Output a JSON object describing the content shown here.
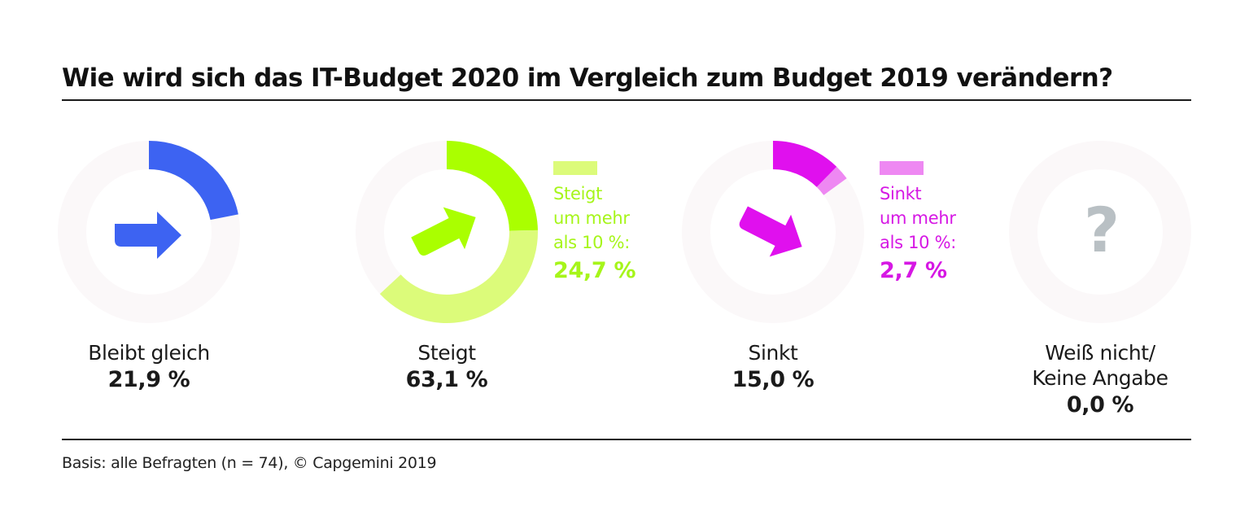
{
  "title": "Wie wird sich das IT-Budget 2020 im Vergleich zum Budget 2019 verändern?",
  "footer": "Basis: alle Befragten (n = 74), © Capgemini 2019",
  "colors": {
    "track": "#fbf8f9",
    "blue": "#3d63f2",
    "green_dark": "#aaff00",
    "green_light": "#dcfb7a",
    "magenta_dark": "#e010ee",
    "magenta_light": "#ee88f2",
    "grey": "#b9c0c4"
  },
  "chart_data": {
    "type": "pie",
    "variant": "donut-small-multiples",
    "title": "Wie wird sich das IT-Budget 2020 im Vergleich zum Budget 2019 verändern?",
    "unit": "%",
    "categories": [
      {
        "label": "Bleibt gleich",
        "value": 21.9,
        "value_label": "21,9 %",
        "icon": "arrow-right-icon",
        "segments": [
          {
            "name": "Bleibt gleich",
            "value": 21.9,
            "color": "#3d63f2"
          }
        ]
      },
      {
        "label": "Steigt",
        "value": 63.1,
        "value_label": "63,1 %",
        "icon": "arrow-up-right-icon",
        "segments": [
          {
            "name": "Steigt um mehr als 10 %",
            "value": 24.7,
            "color": "#aaff00"
          },
          {
            "name": "Steigt (Rest)",
            "value": 38.4,
            "color": "#dcfb7a"
          }
        ],
        "sub_legend": {
          "lines": [
            "Steigt",
            "um mehr",
            "als 10 %:"
          ],
          "value_label": "24,7 %",
          "value": 24.7,
          "swatch_color": "#dcfb7a",
          "text_color": "#a6f51a"
        }
      },
      {
        "label": "Sinkt",
        "value": 15.0,
        "value_label": "15,0 %",
        "icon": "arrow-down-right-icon",
        "segments": [
          {
            "name": "Sinkt (Rest)",
            "value": 12.3,
            "color": "#e010ee"
          },
          {
            "name": "Sinkt um mehr als 10 %",
            "value": 2.7,
            "color": "#ee88f2"
          }
        ],
        "sub_legend": {
          "lines": [
            "Sinkt",
            "um mehr",
            "als 10 %:"
          ],
          "value_label": "2,7 %",
          "value": 2.7,
          "swatch_color": "#ee88f2",
          "text_color": "#d618e4"
        }
      },
      {
        "label": "Weiß nicht/",
        "label2": "Keine Angabe",
        "value": 0.0,
        "value_label": "0,0 %",
        "icon": "question-mark-icon",
        "segments": []
      }
    ],
    "source": "Basis: alle Befragten (n = 74), © Capgemini 2019"
  }
}
